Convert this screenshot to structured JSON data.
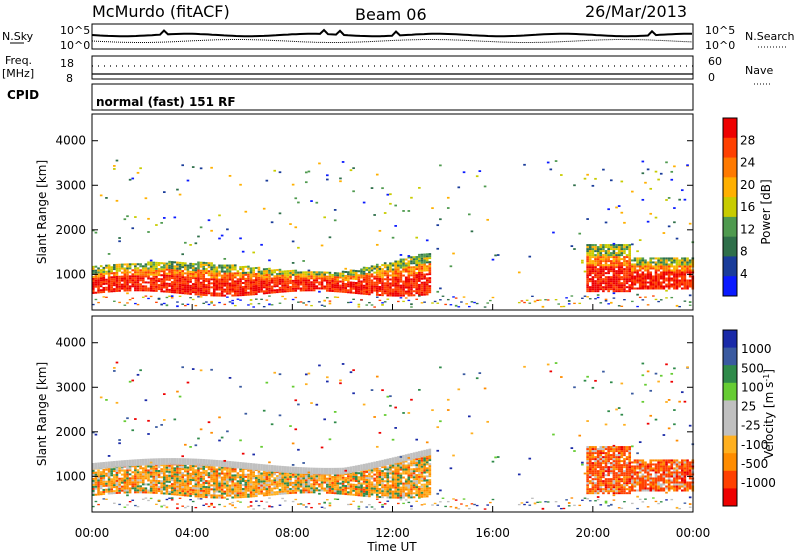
{
  "header": {
    "station": "McMurdo (fitACF)",
    "beam": "Beam 06",
    "date": "26/Mar/2013"
  },
  "status_panels": {
    "nsky_label": "N.Sky",
    "nsearch_label": "N.Search",
    "noise_ticks_left": [
      "10^5",
      "10^0"
    ],
    "noise_ticks_right": [
      "10^5",
      "10^0"
    ],
    "freq_label_line1": "Freq.",
    "freq_label_line2": "[MHz]",
    "freq_ticks": [
      "18",
      "8"
    ],
    "nave_label": "Nave",
    "nave_ticks": [
      "60",
      "0"
    ],
    "cpid_label": "CPID",
    "cpid_text": "normal (fast) 151 RF"
  },
  "colors": {
    "power_scale": [
      "#0a1aff",
      "#1a3c9a",
      "#2f6f4a",
      "#4f9a4f",
      "#c8cc00",
      "#ffb000",
      "#ff7a00",
      "#ff4000",
      "#ee0000"
    ],
    "velocity_scale": [
      "#ee0000",
      "#ff4000",
      "#ff8c00",
      "#ffb020",
      "#c0c0c0",
      "#c0c0c0",
      "#66cc33",
      "#2f8a4a",
      "#3a5aa0",
      "#1a2aa8"
    ]
  },
  "chart_data": [
    {
      "type": "heatmap",
      "id": "power",
      "ylabel": "Slant Range [km]",
      "xlabel": "",
      "x_ticks": [
        "00:00",
        "04:00",
        "08:00",
        "12:00",
        "16:00",
        "20:00",
        "00:00"
      ],
      "y_ticks": [
        1000,
        2000,
        3000,
        4000
      ],
      "ylim": [
        200,
        4600
      ],
      "xlim_hours": [
        0,
        24
      ],
      "colorbar_label": "Power [dB]",
      "colorbar_ticks": [
        "4",
        "8",
        "12",
        "16",
        "20",
        "24",
        "28"
      ],
      "colorbar_range": [
        0,
        32
      ],
      "main_echo_band": {
        "hours": [
          0,
          13.5
        ],
        "range_km": [
          550,
          1300
        ]
      },
      "evening_echo_band": {
        "hours": [
          19.7,
          24
        ],
        "range_km": [
          550,
          1700
        ]
      },
      "data_gap_hours": [
        16.2,
        17.0
      ]
    },
    {
      "type": "heatmap",
      "id": "velocity",
      "ylabel": "Slant Range [km]",
      "xlabel": "Time UT",
      "x_ticks": [
        "00:00",
        "04:00",
        "08:00",
        "12:00",
        "16:00",
        "20:00",
        "00:00"
      ],
      "y_ticks": [
        1000,
        2000,
        3000,
        4000
      ],
      "ylim": [
        200,
        4600
      ],
      "xlim_hours": [
        0,
        24
      ],
      "colorbar_label": "Velocity [m s^-1]",
      "colorbar_ticks": [
        "1000",
        "500",
        "100",
        "25",
        "-25",
        "-100",
        "-500",
        "-1000"
      ]
    }
  ]
}
